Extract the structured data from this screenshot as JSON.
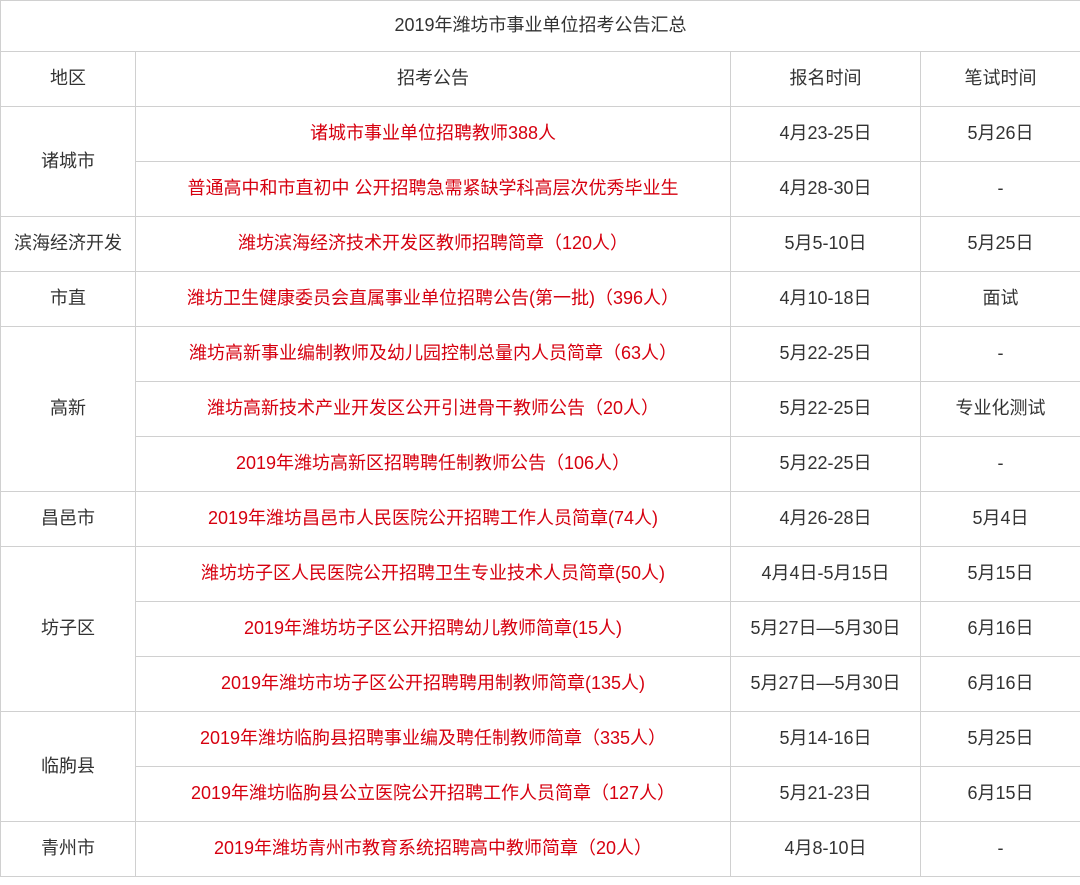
{
  "title": "2019年潍坊市事业单位招考公告汇总",
  "headers": {
    "region": "地区",
    "notice": "招考公告",
    "signup": "报名时间",
    "exam": "笔试时间"
  },
  "colors": {
    "text": "#333333",
    "link": "#d6000f",
    "border": "#d0d0d0",
    "bg": "#ffffff"
  },
  "font_sizes": {
    "title": 18,
    "header": 18,
    "cell": 18
  },
  "rows": [
    {
      "region": "诸城市",
      "rowspan": 2,
      "notice": "诸城市事业单位招聘教师388人",
      "signup": "4月23-25日",
      "exam": "5月26日"
    },
    {
      "notice": "普通高中和市直初中 公开招聘急需紧缺学科高层次优秀毕业生",
      "signup": "4月28-30日",
      "exam": "-"
    },
    {
      "region": "滨海经济开发",
      "rowspan": 1,
      "notice": "潍坊滨海经济技术开发区教师招聘简章（120人）",
      "signup": "5月5-10日",
      "exam": "5月25日"
    },
    {
      "region": "市直",
      "rowspan": 1,
      "notice": "潍坊卫生健康委员会直属事业单位招聘公告(第一批)（396人）",
      "signup": "4月10-18日",
      "exam": "面试"
    },
    {
      "region": "高新",
      "rowspan": 3,
      "notice": "潍坊高新事业编制教师及幼儿园控制总量内人员简章（63人）",
      "signup": "5月22-25日",
      "exam": "-"
    },
    {
      "notice": "潍坊高新技术产业开发区公开引进骨干教师公告（20人）",
      "signup": "5月22-25日",
      "exam": "专业化测试"
    },
    {
      "notice": "2019年潍坊高新区招聘聘任制教师公告（106人）",
      "signup": "5月22-25日",
      "exam": "-"
    },
    {
      "region": "昌邑市",
      "rowspan": 1,
      "notice": "2019年潍坊昌邑市人民医院公开招聘工作人员简章(74人)",
      "signup": "4月26-28日",
      "exam": "5月4日"
    },
    {
      "region": "坊子区",
      "rowspan": 3,
      "notice": "潍坊坊子区人民医院公开招聘卫生专业技术人员简章(50人)",
      "signup": "4月4日-5月15日",
      "exam": "5月15日"
    },
    {
      "notice": "2019年潍坊坊子区公开招聘幼儿教师简章(15人)",
      "signup": "5月27日—5月30日",
      "exam": "6月16日"
    },
    {
      "notice": "2019年潍坊市坊子区公开招聘聘用制教师简章(135人)",
      "signup": "5月27日—5月30日",
      "exam": "6月16日"
    },
    {
      "region": "临朐县",
      "rowspan": 2,
      "notice": "2019年潍坊临朐县招聘事业编及聘任制教师简章（335人）",
      "signup": "5月14-16日",
      "exam": "5月25日"
    },
    {
      "notice": "2019年潍坊临朐县公立医院公开招聘工作人员简章（127人）",
      "signup": "5月21-23日",
      "exam": "6月15日"
    },
    {
      "region": "青州市",
      "rowspan": 1,
      "notice": "2019年潍坊青州市教育系统招聘高中教师简章（20人）",
      "signup": "4月8-10日",
      "exam": "-"
    }
  ]
}
